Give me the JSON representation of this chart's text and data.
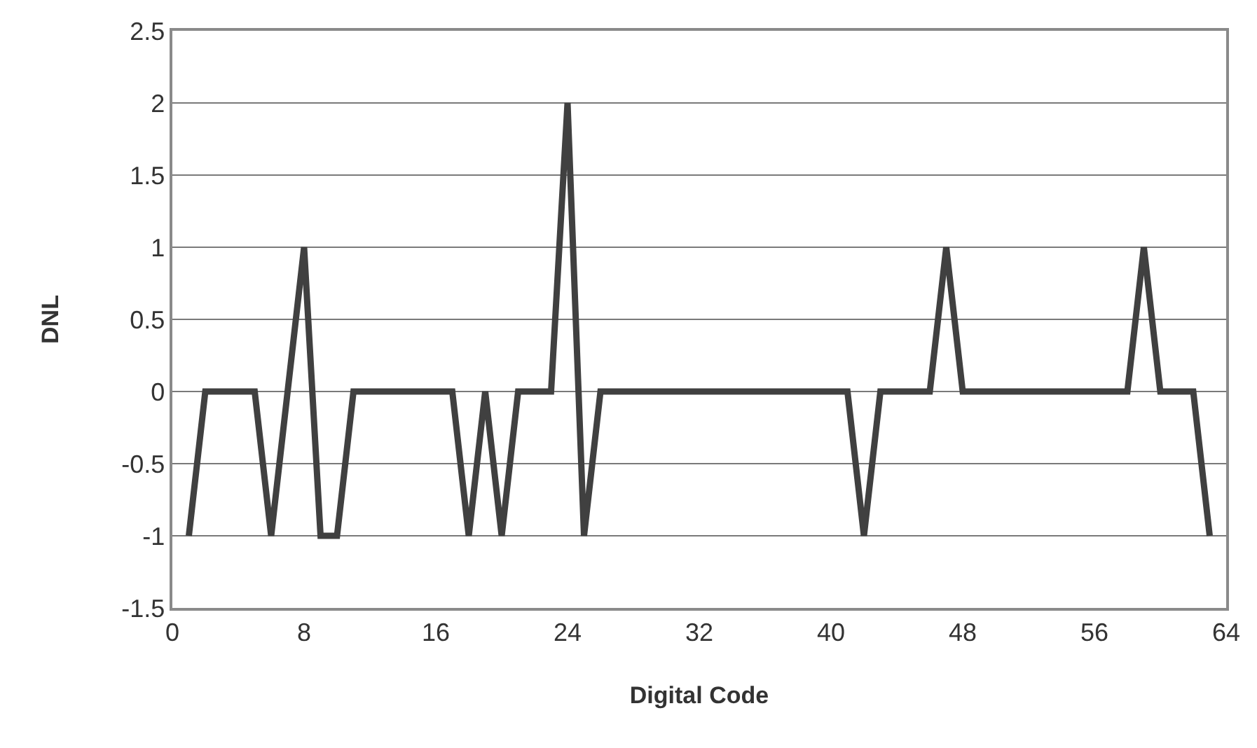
{
  "chart_data": {
    "type": "line",
    "xlabel": "Digital Code",
    "ylabel": "DNL",
    "x": [
      1,
      2,
      3,
      4,
      5,
      6,
      7,
      8,
      9,
      10,
      11,
      12,
      13,
      14,
      15,
      16,
      17,
      18,
      19,
      20,
      21,
      22,
      23,
      24,
      25,
      26,
      27,
      28,
      29,
      30,
      31,
      32,
      33,
      34,
      35,
      36,
      37,
      38,
      39,
      40,
      41,
      42,
      43,
      44,
      45,
      46,
      47,
      48,
      49,
      50,
      51,
      52,
      53,
      54,
      55,
      56,
      57,
      58,
      59,
      60,
      61,
      62,
      63
    ],
    "series": [
      {
        "color": "#404040",
        "values": [
          -1,
          0,
          0,
          0,
          0,
          -1,
          0,
          1,
          -1,
          -1,
          0,
          0,
          0,
          0,
          0,
          0,
          0,
          -1,
          0,
          -1,
          0,
          0,
          0,
          2,
          -1,
          0,
          0,
          0,
          0,
          0,
          0,
          0,
          0,
          0,
          0,
          0,
          0,
          0,
          0,
          0,
          0,
          -1,
          0,
          0,
          0,
          0,
          1,
          0,
          0,
          0,
          0,
          0,
          0,
          0,
          0,
          0,
          0,
          0,
          1,
          0,
          0,
          0,
          -1
        ]
      }
    ],
    "xlim": [
      0,
      64
    ],
    "xticks": [
      0,
      8,
      16,
      24,
      32,
      40,
      48,
      56,
      64
    ],
    "ylim": [
      -1.5,
      2.5
    ],
    "yticks": [
      -1.5,
      -1,
      -0.5,
      0,
      0.5,
      1,
      1.5,
      2,
      2.5
    ],
    "grid": "y",
    "marker": "none",
    "line_style": "solid"
  }
}
